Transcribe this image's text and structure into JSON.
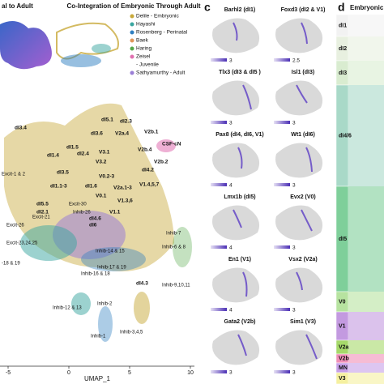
{
  "left_panel": {
    "title_cut": "al to Adult",
    "cointegration_title": "Co-Integration of Embryonic Through Adult",
    "legend": [
      {
        "label": "Delile - Embryonic",
        "color": "#c8a93a"
      },
      {
        "label": "Hayashi",
        "color": "#3aa6a0"
      },
      {
        "label": "Rosenberg - Perinatal",
        "color": "#2f7fc1"
      },
      {
        "label": "Baek",
        "color": "#e0965a"
      },
      {
        "label": "Haring",
        "color": "#55a84a"
      },
      {
        "label": "Zeisel",
        "color": "#e070b0"
      },
      {
        "label": "- Juvenile",
        "color": null
      },
      {
        "label": "Sathyamurthy - Adult",
        "color": "#9b7fd6"
      }
    ],
    "cluster_labels": [
      "dI5.1",
      "dI2.3",
      "dI3.4",
      "dI3.6",
      "V2a.4",
      "V2b.1",
      "CSF-cN",
      "V2b.4",
      "V2b.2",
      "dI1.5",
      "V3.1",
      "dI2.4",
      "dI1.4",
      "V3.2",
      "dI4.2",
      "V1.4,5,7",
      "dI3.5",
      "V0.2-3",
      "V2a.1-3",
      "dI1.1-3",
      "V0.1",
      "dI1.6",
      "Excit-30",
      "V1.3,6",
      "V1.1",
      "dI5.5",
      "Excit-1 & 2",
      "Excit-21",
      "Excit-26",
      "Inhib-26",
      "dI2.1",
      "dI4.6",
      "dI6",
      "Excit-23,24,25",
      "Inhib-14 & 15",
      "Inhib-7",
      "Inhib-6 & 8",
      "Inhib-17 & 19",
      "-18 & 19",
      "Inhib-16 & 18",
      "Inhib-9,10,11",
      "Inhib-12 & 13",
      "Inhib-2",
      "dI4.3",
      "Inhib-3,4,5",
      "Inhib-1"
    ],
    "x_axis_label": "UMAP_1",
    "x_ticks": [
      -5,
      0,
      5,
      10
    ]
  },
  "panel_c": {
    "letter": "c",
    "genes": [
      {
        "title": "Barhl2 (dI1)",
        "max": 3
      },
      {
        "title": "Foxd3 (dI2 & V1)",
        "max": 2.5
      },
      {
        "title": "Tlx3 (dI3 & dI5 )",
        "max": 3
      },
      {
        "title": "Isl1 (dI3)",
        "max": 3
      },
      {
        "title": "Pax8 (dI4, dI6, V1)",
        "max": 4
      },
      {
        "title": "Wt1 (dI6)",
        "max": 3
      },
      {
        "title": "Lmx1b (dI5)",
        "max": 4
      },
      {
        "title": "Evx2 (V0)",
        "max": 3
      },
      {
        "title": "En1 (V1)",
        "max": 4
      },
      {
        "title": "Vsx2 (V2a)",
        "max": 3
      },
      {
        "title": "Gata2 (V2b)",
        "max": 3
      },
      {
        "title": "Sim1 (V3)",
        "max": 3
      }
    ]
  },
  "panel_d": {
    "letter": "d",
    "title": "Embryonic",
    "bands": [
      "dI1",
      "dI2",
      "dI3",
      "dI4/6",
      "dI5",
      "V0",
      "V1",
      "V2a",
      "V2b",
      "MN",
      "V3"
    ]
  }
}
